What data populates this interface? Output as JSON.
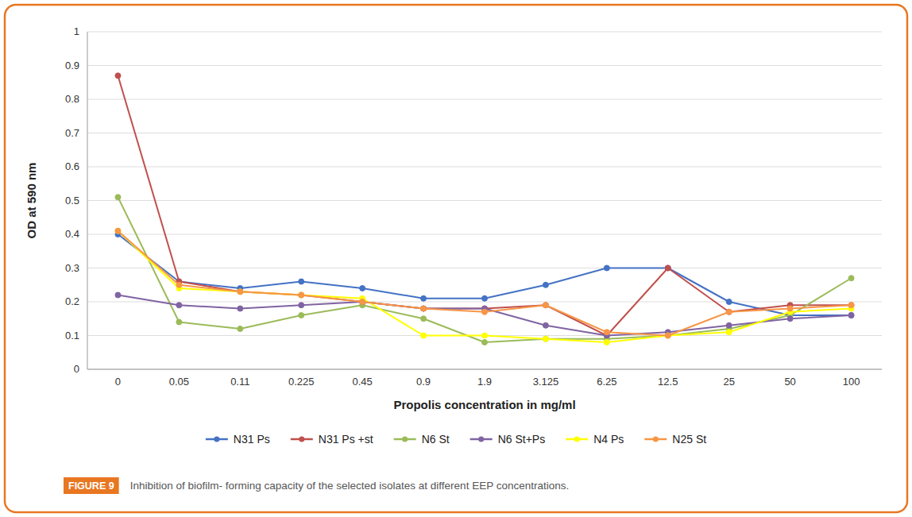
{
  "chart_data": {
    "type": "line",
    "x_label": "Propolis concentration in mg/ml",
    "y_label": "OD at 590 nm",
    "categories": [
      "0",
      "0.05",
      "0.11",
      "0.225",
      "0.45",
      "0.9",
      "1.9",
      "3.125",
      "6.25",
      "12.5",
      "25",
      "50",
      "100"
    ],
    "series": [
      {
        "name": "N31 Ps",
        "color": "#4472C4",
        "values": [
          0.4,
          0.26,
          0.24,
          0.26,
          0.24,
          0.21,
          0.21,
          0.25,
          0.3,
          0.3,
          0.2,
          0.16,
          0.16
        ]
      },
      {
        "name": "N31 Ps +st",
        "color": "#C0504D",
        "values": [
          0.87,
          0.26,
          0.23,
          0.22,
          0.2,
          0.18,
          0.18,
          0.19,
          0.1,
          0.3,
          0.17,
          0.19,
          0.19
        ]
      },
      {
        "name": "N6 St",
        "color": "#9BBB59",
        "values": [
          0.51,
          0.14,
          0.12,
          0.16,
          0.19,
          0.15,
          0.08,
          0.09,
          0.09,
          0.1,
          0.12,
          0.16,
          0.27
        ]
      },
      {
        "name": "N6 St+Ps",
        "color": "#8064A2",
        "values": [
          0.22,
          0.19,
          0.18,
          0.19,
          0.2,
          0.18,
          0.18,
          0.13,
          0.1,
          0.11,
          0.13,
          0.15,
          0.16
        ]
      },
      {
        "name": "N4 Ps",
        "color": "#FFFF00",
        "values": [
          0.41,
          0.24,
          0.23,
          0.22,
          0.21,
          0.1,
          0.1,
          0.09,
          0.08,
          0.1,
          0.11,
          0.17,
          0.18
        ]
      },
      {
        "name": "N25 St",
        "color": "#F79646",
        "values": [
          0.41,
          0.25,
          0.23,
          0.22,
          0.2,
          0.18,
          0.17,
          0.19,
          0.11,
          0.1,
          0.17,
          0.18,
          0.19
        ]
      }
    ],
    "ylim": [
      0,
      1.0
    ],
    "yticks": [
      0,
      0.1,
      0.2,
      0.3,
      0.4,
      0.5,
      0.6,
      0.7,
      0.8,
      0.9,
      1
    ],
    "grid": true,
    "legend": "bottom",
    "marker": "circle",
    "annotations": [
      "FIGURE 9",
      "Inhibition of biofilm- forming capacity of the selected isolates at different EEP concentrations."
    ]
  }
}
